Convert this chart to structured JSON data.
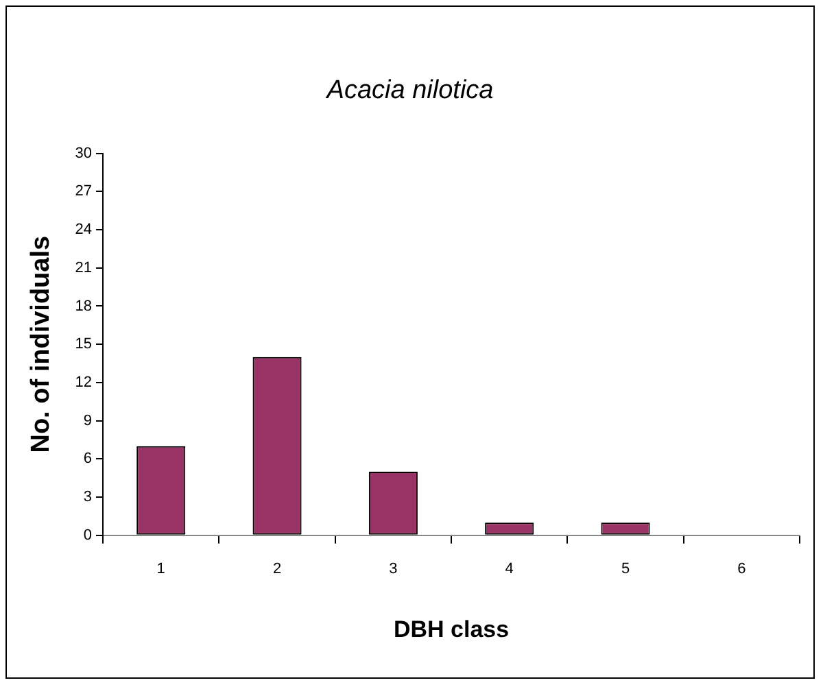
{
  "chart_data": {
    "type": "bar",
    "title": "Acacia nilotica",
    "xlabel": "DBH class",
    "ylabel": "No. of individuals",
    "categories": [
      "1",
      "2",
      "3",
      "4",
      "5",
      "6"
    ],
    "values": [
      7,
      14,
      5,
      1,
      1,
      0
    ],
    "color": "#993366",
    "ylim": [
      0,
      30
    ],
    "yticks": [
      0,
      3,
      6,
      9,
      12,
      15,
      18,
      21,
      24,
      27,
      30
    ],
    "grid": false,
    "legend": false
  }
}
